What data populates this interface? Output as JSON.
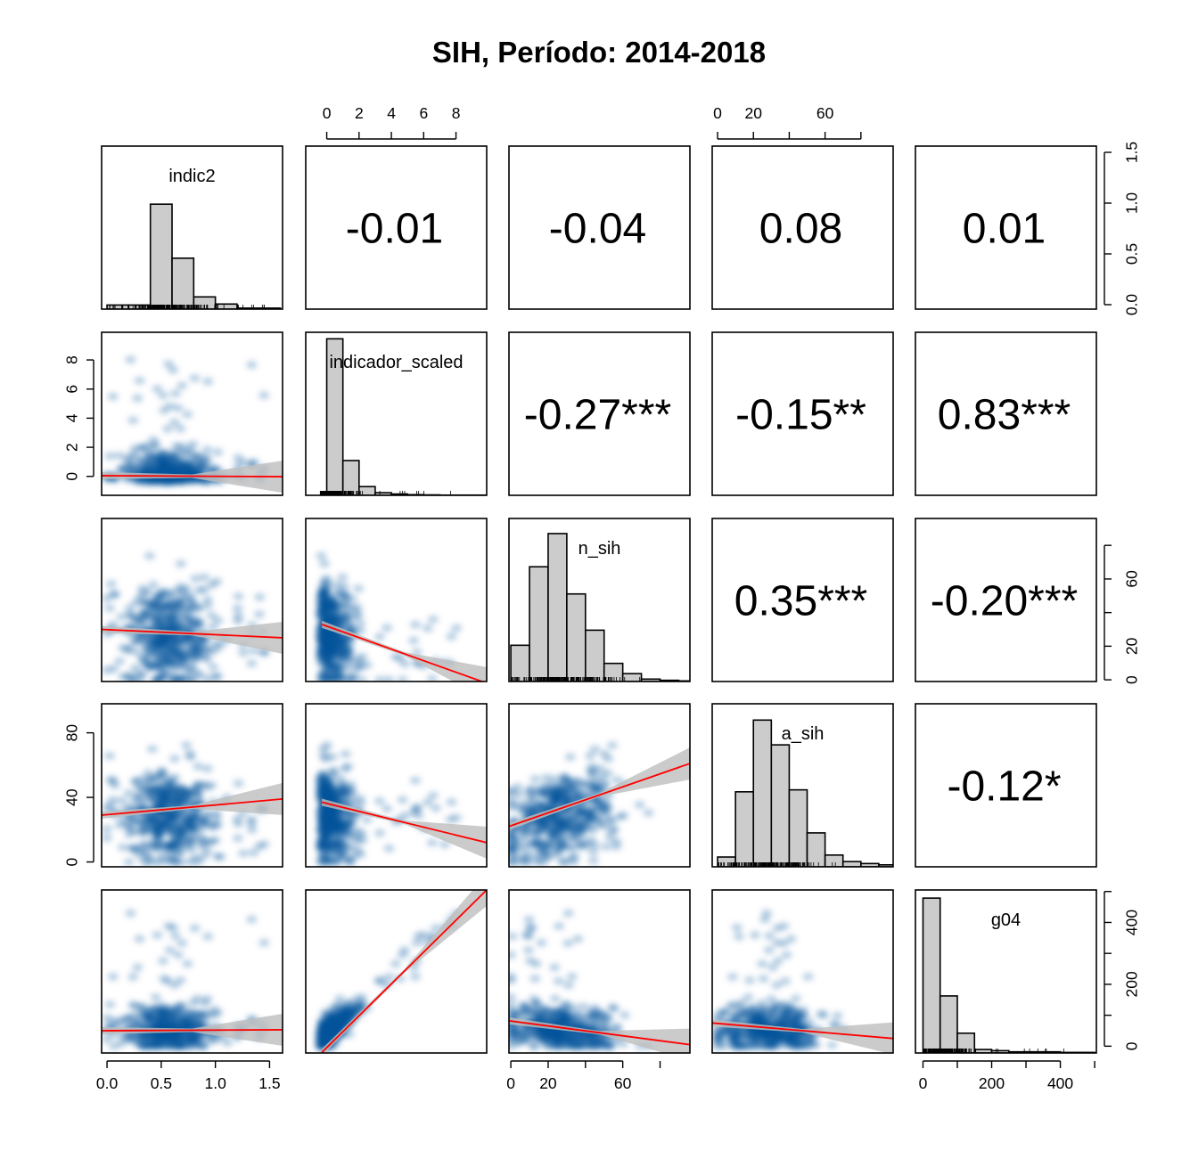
{
  "chart_data": {
    "type": "scatter",
    "chart_kind": "scatterplot matrix (pairs) with correlation coefficients",
    "title": "SIH, Período: 2014-2018",
    "variables": [
      "indic2",
      "indicador_scaled",
      "n_sih",
      "a_sih",
      "g04"
    ],
    "ranges": {
      "indic2": [
        -0.05,
        1.62
      ],
      "indicador_scaled": [
        -1.3,
        9.9
      ],
      "n_sih": [
        -1,
        96
      ],
      "a_sih": [
        -3,
        98
      ],
      "g04": [
        -22,
        505
      ]
    },
    "axis_ticks": {
      "indic2": [
        "0.0",
        "0.5",
        "1.0",
        "1.5"
      ],
      "indicador_scaled": [
        "0",
        "2",
        "4",
        "6",
        "8"
      ],
      "n_sih": [
        "0",
        "20",
        "60"
      ],
      "a_sih": [
        "0",
        "40",
        "80"
      ],
      "g04": [
        "0",
        "200",
        "400"
      ],
      "hist_density": [
        "0.0",
        "0.5",
        "1.0",
        "1.5"
      ],
      "right_n_sih": [
        "0",
        "20",
        "60"
      ],
      "right_g04": [
        "0",
        "200",
        "400"
      ]
    },
    "axis_tick_values": {
      "bottom_indic2": [
        0,
        0.5,
        1.0,
        1.5
      ],
      "top_indicador_scaled": [
        0,
        2,
        4,
        6,
        8
      ],
      "bottom_n_sih": [
        0,
        20,
        60
      ],
      "top_a_sih": [
        0,
        20,
        60
      ],
      "bottom_g04": [
        0,
        200,
        400
      ],
      "right_density": [
        0,
        0.5,
        1.0,
        1.5
      ],
      "left_indicador_scaled": [
        0,
        2,
        4,
        6,
        8
      ],
      "right_n_sih": [
        0,
        20,
        60
      ],
      "left_a_sih": [
        0,
        40,
        80
      ],
      "right_g04": [
        0,
        200,
        400
      ]
    },
    "histograms": [
      {
        "variable": "indic2",
        "edges": [
          0,
          0.2,
          0.4,
          0.6,
          0.8,
          1.0,
          1.2,
          1.4,
          1.6
        ],
        "density": [
          0.04,
          0.04,
          1.03,
          0.5,
          0.12,
          0.05,
          0.01,
          0.01
        ],
        "density_max": 1.6
      },
      {
        "variable": "indicador_scaled",
        "edges": [
          0,
          1,
          2,
          3,
          4,
          5,
          6,
          7,
          8,
          9,
          10
        ],
        "density": [
          0.72,
          0.16,
          0.04,
          0.012,
          0.006,
          0.003,
          0.002,
          0.001,
          0.001,
          0.001
        ],
        "density_max": 0.75
      },
      {
        "variable": "n_sih",
        "edges": [
          0,
          10,
          20,
          30,
          40,
          50,
          60,
          70,
          80,
          90,
          100
        ],
        "density": [
          0.006,
          0.019,
          0.0245,
          0.0145,
          0.0085,
          0.003,
          0.0013,
          0.0004,
          0.0002,
          0.0001
        ],
        "density_max": 0.027
      },
      {
        "variable": "a_sih",
        "edges": [
          0,
          10,
          20,
          30,
          40,
          50,
          60,
          70,
          80,
          90,
          100
        ],
        "density": [
          0.0015,
          0.0115,
          0.0225,
          0.0187,
          0.0118,
          0.0052,
          0.0018,
          0.0008,
          0.0005,
          0.0003
        ],
        "density_max": 0.025
      },
      {
        "variable": "g04",
        "edges": [
          0,
          50,
          100,
          150,
          200,
          250,
          300,
          350,
          400,
          450,
          500
        ],
        "density": [
          0.0133,
          0.0049,
          0.0017,
          0.0003,
          0.0002,
          0.0001,
          0.0001,
          0.0001,
          5e-05,
          5e-05
        ],
        "density_max": 0.014
      }
    ],
    "correlations": [
      {
        "row": 1,
        "col": 2,
        "vars": [
          "indic2",
          "indicador_scaled"
        ],
        "label": "-0.01"
      },
      {
        "row": 1,
        "col": 3,
        "vars": [
          "indic2",
          "n_sih"
        ],
        "label": "-0.04"
      },
      {
        "row": 1,
        "col": 4,
        "vars": [
          "indic2",
          "a_sih"
        ],
        "label": "0.08"
      },
      {
        "row": 1,
        "col": 5,
        "vars": [
          "indic2",
          "g04"
        ],
        "label": "0.01"
      },
      {
        "row": 2,
        "col": 3,
        "vars": [
          "indicador_scaled",
          "n_sih"
        ],
        "label": "-0.27***"
      },
      {
        "row": 2,
        "col": 4,
        "vars": [
          "indicador_scaled",
          "a_sih"
        ],
        "label": "-0.15**"
      },
      {
        "row": 2,
        "col": 5,
        "vars": [
          "indicador_scaled",
          "g04"
        ],
        "label": "0.83***"
      },
      {
        "row": 3,
        "col": 4,
        "vars": [
          "n_sih",
          "a_sih"
        ],
        "label": "0.35***"
      },
      {
        "row": 3,
        "col": 5,
        "vars": [
          "n_sih",
          "g04"
        ],
        "label": "-0.20***"
      },
      {
        "row": 4,
        "col": 5,
        "vars": [
          "a_sih",
          "g04"
        ],
        "label": "-0.12*"
      }
    ],
    "regression_lines": [
      {
        "x": "indic2",
        "y": "indicador_scaled",
        "x_range": [
          -0.05,
          1.62
        ],
        "y_values": [
          0.05,
          -0.02
        ]
      },
      {
        "x": "indic2",
        "y": "n_sih",
        "x_range": [
          -0.05,
          1.62
        ],
        "y_values": [
          30,
          25
        ]
      },
      {
        "x": "indicador_scaled",
        "y": "n_sih",
        "x_range": [
          -0.3,
          9.9
        ],
        "y_values": [
          33,
          -2
        ]
      },
      {
        "x": "indic2",
        "y": "a_sih",
        "x_range": [
          -0.05,
          1.62
        ],
        "y_values": [
          29,
          39
        ]
      },
      {
        "x": "indicador_scaled",
        "y": "a_sih",
        "x_range": [
          -0.3,
          9.9
        ],
        "y_values": [
          37,
          12
        ]
      },
      {
        "x": "n_sih",
        "y": "a_sih",
        "x_range": [
          -1,
          96
        ],
        "y_values": [
          22,
          61
        ]
      },
      {
        "x": "indic2",
        "y": "g04",
        "x_range": [
          -0.05,
          1.62
        ],
        "y_values": [
          50,
          53
        ]
      },
      {
        "x": "indicador_scaled",
        "y": "g04",
        "x_range": [
          -0.3,
          9.9
        ],
        "y_values": [
          -20,
          505
        ]
      },
      {
        "x": "n_sih",
        "y": "g04",
        "x_range": [
          -1,
          96
        ],
        "y_values": [
          82,
          5
        ]
      },
      {
        "x": "a_sih",
        "y": "g04",
        "x_range": [
          -3,
          98
        ],
        "y_values": [
          75,
          25
        ]
      }
    ],
    "colors": {
      "histogram_fill": "#cccccc",
      "regression_line": "#ff0000",
      "confidence_band": "#bebebe",
      "density_points": "#08519c"
    },
    "grid": false,
    "legend": "none"
  }
}
